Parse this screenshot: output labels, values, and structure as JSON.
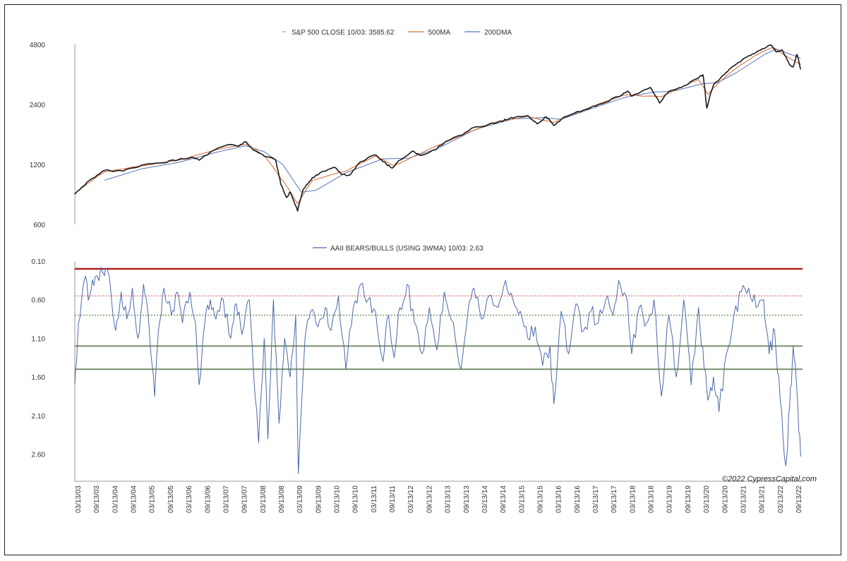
{
  "colors": {
    "price": "#1a1a1a",
    "ma500": "#d8703f",
    "ma200": "#5573b7",
    "ratio": "#4a68a8",
    "red_line": "#b22222",
    "red_dotted": "#d9534f",
    "green_dotted": "#3c6e2a",
    "green_band": "#7a8f6a",
    "axis": "#999999"
  },
  "watermark": "©2022 CypressCapital.com",
  "chart_data": [
    {
      "type": "line",
      "scale": "log",
      "legend": [
        {
          "name": "S&P 500 CLOSE 10/03: 3585.62",
          "color": "#888888"
        },
        {
          "name": "500MA",
          "color": "#d8703f"
        },
        {
          "name": "200DMA",
          "color": "#5573b7"
        }
      ],
      "y_ticks": [
        "4800",
        "2400",
        "1200",
        "600"
      ],
      "ylim": [
        600,
        4800
      ],
      "grid": false,
      "legend_position": "top-center",
      "series": [
        {
          "name": "S&P 500 CLOSE 10/03: 3585.62",
          "role": "price",
          "points": [
            [
              2003.2,
              850
            ],
            [
              2003.6,
              1000
            ],
            [
              2004.0,
              1120
            ],
            [
              2004.5,
              1110
            ],
            [
              2005.0,
              1190
            ],
            [
              2005.5,
              1220
            ],
            [
              2006.0,
              1270
            ],
            [
              2006.4,
              1300
            ],
            [
              2006.55,
              1260
            ],
            [
              2007.0,
              1430
            ],
            [
              2007.4,
              1510
            ],
            [
              2007.6,
              1480
            ],
            [
              2007.8,
              1560
            ],
            [
              2008.0,
              1420
            ],
            [
              2008.3,
              1320
            ],
            [
              2008.6,
              1270
            ],
            [
              2008.75,
              950
            ],
            [
              2008.9,
              820
            ],
            [
              2009.0,
              870
            ],
            [
              2009.2,
              700
            ],
            [
              2009.35,
              900
            ],
            [
              2009.6,
              1030
            ],
            [
              2009.9,
              1110
            ],
            [
              2010.2,
              1160
            ],
            [
              2010.4,
              1070
            ],
            [
              2010.6,
              1060
            ],
            [
              2010.9,
              1240
            ],
            [
              2011.3,
              1340
            ],
            [
              2011.6,
              1200
            ],
            [
              2011.75,
              1150
            ],
            [
              2011.95,
              1260
            ],
            [
              2012.3,
              1400
            ],
            [
              2012.5,
              1330
            ],
            [
              2012.9,
              1420
            ],
            [
              2013.2,
              1570
            ],
            [
              2013.6,
              1680
            ],
            [
              2013.95,
              1840
            ],
            [
              2014.3,
              1890
            ],
            [
              2014.7,
              1980
            ],
            [
              2014.95,
              2060
            ],
            [
              2015.4,
              2110
            ],
            [
              2015.65,
              1920
            ],
            [
              2015.9,
              2080
            ],
            [
              2016.1,
              1880
            ],
            [
              2016.4,
              2080
            ],
            [
              2016.9,
              2250
            ],
            [
              2017.4,
              2420
            ],
            [
              2017.95,
              2690
            ],
            [
              2018.1,
              2800
            ],
            [
              2018.2,
              2640
            ],
            [
              2018.7,
              2920
            ],
            [
              2018.95,
              2440
            ],
            [
              2019.2,
              2790
            ],
            [
              2019.6,
              2970
            ],
            [
              2019.95,
              3230
            ],
            [
              2020.12,
              3380
            ],
            [
              2020.22,
              2300
            ],
            [
              2020.4,
              3000
            ],
            [
              2020.7,
              3400
            ],
            [
              2020.95,
              3750
            ],
            [
              2021.3,
              4150
            ],
            [
              2021.6,
              4450
            ],
            [
              2021.95,
              4770
            ],
            [
              2022.1,
              4400
            ],
            [
              2022.25,
              4500
            ],
            [
              2022.45,
              3800
            ],
            [
              2022.55,
              3700
            ],
            [
              2022.65,
              4280
            ],
            [
              2022.75,
              3600
            ]
          ]
        },
        {
          "name": "500MA",
          "role": "ma500",
          "points": [
            [
              2003.2,
              860
            ],
            [
              2004.0,
              1100
            ],
            [
              2005.0,
              1180
            ],
            [
              2006.0,
              1260
            ],
            [
              2007.0,
              1420
            ],
            [
              2007.8,
              1520
            ],
            [
              2008.3,
              1330
            ],
            [
              2008.7,
              1050
            ],
            [
              2009.2,
              760
            ],
            [
              2009.6,
              1000
            ],
            [
              2010.5,
              1110
            ],
            [
              2011.3,
              1320
            ],
            [
              2011.8,
              1180
            ],
            [
              2012.5,
              1360
            ],
            [
              2013.5,
              1640
            ],
            [
              2014.5,
              1950
            ],
            [
              2015.4,
              2090
            ],
            [
              2016.1,
              1950
            ],
            [
              2017.0,
              2290
            ],
            [
              2018.0,
              2680
            ],
            [
              2019.0,
              2620
            ],
            [
              2020.0,
              3200
            ],
            [
              2020.25,
              2700
            ],
            [
              2020.8,
              3400
            ],
            [
              2021.5,
              4200
            ],
            [
              2022.0,
              4650
            ],
            [
              2022.4,
              4150
            ],
            [
              2022.75,
              3800
            ]
          ]
        },
        {
          "name": "200DMA",
          "role": "ma200",
          "points": [
            [
              2004.0,
              1000
            ],
            [
              2005.0,
              1140
            ],
            [
              2006.0,
              1230
            ],
            [
              2007.0,
              1380
            ],
            [
              2007.8,
              1490
            ],
            [
              2008.3,
              1390
            ],
            [
              2008.8,
              1200
            ],
            [
              2009.3,
              870
            ],
            [
              2009.7,
              890
            ],
            [
              2010.5,
              1090
            ],
            [
              2011.5,
              1280
            ],
            [
              2012.2,
              1290
            ],
            [
              2013.0,
              1450
            ],
            [
              2014.0,
              1800
            ],
            [
              2015.0,
              2030
            ],
            [
              2015.8,
              2060
            ],
            [
              2016.3,
              2020
            ],
            [
              2017.0,
              2250
            ],
            [
              2018.0,
              2600
            ],
            [
              2018.8,
              2770
            ],
            [
              2019.3,
              2790
            ],
            [
              2020.1,
              3050
            ],
            [
              2020.5,
              3080
            ],
            [
              2021.0,
              3450
            ],
            [
              2021.8,
              4300
            ],
            [
              2022.1,
              4550
            ],
            [
              2022.75,
              4100
            ]
          ]
        }
      ]
    },
    {
      "type": "line",
      "y_inverted": true,
      "legend": [
        {
          "name": "AAII BEARS/BULLS (USING 3WMA) 10/03: 2.63",
          "color": "#4a68a8"
        }
      ],
      "y_ticks": [
        "0.10",
        "0.60",
        "1.10",
        "1.60",
        "2.10",
        "2.60"
      ],
      "ylim": [
        0.1,
        2.95
      ],
      "grid": false,
      "legend_position": "top-center",
      "x_labels": [
        "03/13/03",
        "09/13/03",
        "03/13/04",
        "09/13/04",
        "03/13/05",
        "09/13/05",
        "03/13/06",
        "09/13/06",
        "03/13/07",
        "09/13/07",
        "03/13/08",
        "09/13/08",
        "03/13/09",
        "09/13/09",
        "03/13/10",
        "09/13/10",
        "03/13/11",
        "09/13/11",
        "03/13/12",
        "09/13/12",
        "03/13/13",
        "09/13/13",
        "03/13/14",
        "09/13/14",
        "03/13/15",
        "09/13/15",
        "03/13/16",
        "09/13/16",
        "03/13/17",
        "09/13/17",
        "03/13/18",
        "09/13/18",
        "03/13/19",
        "09/13/19",
        "03/13/20",
        "09/13/20",
        "03/13/21",
        "09/13/21",
        "03/13/22",
        "09/13/22"
      ],
      "reference_lines": [
        {
          "value": 0.2,
          "style": "solid-red"
        },
        {
          "value": 0.55,
          "style": "dotted-red"
        },
        {
          "value": 0.8,
          "style": "dotted-green"
        },
        {
          "value": 1.2,
          "style": "solid-green"
        },
        {
          "value": 1.5,
          "style": "solid-green"
        }
      ],
      "series": [
        {
          "name": "AAII BEARS/BULLS (USING 3WMA) 10/03: 2.63",
          "points": [
            [
              2003.2,
              1.7
            ],
            [
              2003.3,
              0.9
            ],
            [
              2003.45,
              0.35
            ],
            [
              2003.6,
              0.55
            ],
            [
              2003.75,
              0.3
            ],
            [
              2003.95,
              0.25
            ],
            [
              2004.05,
              0.2
            ],
            [
              2004.15,
              0.4
            ],
            [
              2004.3,
              1.0
            ],
            [
              2004.45,
              0.5
            ],
            [
              2004.6,
              0.85
            ],
            [
              2004.75,
              0.45
            ],
            [
              2004.9,
              1.1
            ],
            [
              2005.05,
              0.4
            ],
            [
              2005.2,
              0.95
            ],
            [
              2005.35,
              1.85
            ],
            [
              2005.45,
              1.0
            ],
            [
              2005.6,
              0.45
            ],
            [
              2005.8,
              0.8
            ],
            [
              2005.95,
              0.5
            ],
            [
              2006.1,
              0.9
            ],
            [
              2006.3,
              0.5
            ],
            [
              2006.45,
              0.9
            ],
            [
              2006.55,
              1.7
            ],
            [
              2006.7,
              0.9
            ],
            [
              2006.85,
              0.6
            ],
            [
              2007.0,
              0.85
            ],
            [
              2007.2,
              0.6
            ],
            [
              2007.4,
              1.1
            ],
            [
              2007.55,
              0.65
            ],
            [
              2007.7,
              1.05
            ],
            [
              2007.9,
              0.6
            ],
            [
              2008.05,
              1.8
            ],
            [
              2008.15,
              2.45
            ],
            [
              2008.3,
              1.1
            ],
            [
              2008.4,
              2.4
            ],
            [
              2008.55,
              0.6
            ],
            [
              2008.7,
              2.2
            ],
            [
              2008.85,
              1.1
            ],
            [
              2009.0,
              1.6
            ],
            [
              2009.15,
              0.8
            ],
            [
              2009.22,
              2.85
            ],
            [
              2009.4,
              1.1
            ],
            [
              2009.55,
              0.75
            ],
            [
              2009.75,
              0.95
            ],
            [
              2009.95,
              0.7
            ],
            [
              2010.1,
              1.0
            ],
            [
              2010.3,
              0.55
            ],
            [
              2010.5,
              1.5
            ],
            [
              2010.7,
              0.7
            ],
            [
              2010.9,
              0.4
            ],
            [
              2011.1,
              0.6
            ],
            [
              2011.3,
              0.75
            ],
            [
              2011.5,
              1.4
            ],
            [
              2011.65,
              0.8
            ],
            [
              2011.8,
              1.35
            ],
            [
              2011.95,
              0.7
            ],
            [
              2012.15,
              0.4
            ],
            [
              2012.35,
              0.9
            ],
            [
              2012.55,
              1.3
            ],
            [
              2012.75,
              0.7
            ],
            [
              2012.95,
              1.25
            ],
            [
              2013.15,
              0.5
            ],
            [
              2013.4,
              0.9
            ],
            [
              2013.6,
              1.5
            ],
            [
              2013.8,
              0.7
            ],
            [
              2013.95,
              0.45
            ],
            [
              2014.15,
              0.85
            ],
            [
              2014.35,
              0.55
            ],
            [
              2014.6,
              0.7
            ],
            [
              2014.8,
              0.35
            ],
            [
              2015.0,
              0.6
            ],
            [
              2015.2,
              0.75
            ],
            [
              2015.4,
              1.1
            ],
            [
              2015.6,
              0.95
            ],
            [
              2015.8,
              1.45
            ],
            [
              2016.0,
              1.2
            ],
            [
              2016.1,
              1.95
            ],
            [
              2016.3,
              0.75
            ],
            [
              2016.5,
              1.3
            ],
            [
              2016.7,
              0.65
            ],
            [
              2016.9,
              1.0
            ],
            [
              2017.1,
              0.75
            ],
            [
              2017.3,
              0.9
            ],
            [
              2017.5,
              0.6
            ],
            [
              2017.7,
              0.8
            ],
            [
              2017.85,
              0.35
            ],
            [
              2018.05,
              0.55
            ],
            [
              2018.2,
              1.3
            ],
            [
              2018.4,
              0.7
            ],
            [
              2018.6,
              0.9
            ],
            [
              2018.8,
              0.6
            ],
            [
              2019.0,
              1.85
            ],
            [
              2019.2,
              0.8
            ],
            [
              2019.4,
              1.6
            ],
            [
              2019.6,
              0.6
            ],
            [
              2019.8,
              1.7
            ],
            [
              2020.0,
              0.7
            ],
            [
              2020.15,
              1.5
            ],
            [
              2020.25,
              1.9
            ],
            [
              2020.4,
              1.6
            ],
            [
              2020.55,
              2.05
            ],
            [
              2020.75,
              1.3
            ],
            [
              2020.95,
              0.8
            ],
            [
              2021.15,
              0.5
            ],
            [
              2021.35,
              0.45
            ],
            [
              2021.55,
              0.7
            ],
            [
              2021.75,
              0.6
            ],
            [
              2021.9,
              1.3
            ],
            [
              2022.05,
              1.0
            ],
            [
              2022.2,
              1.9
            ],
            [
              2022.35,
              2.75
            ],
            [
              2022.45,
              2.0
            ],
            [
              2022.55,
              1.2
            ],
            [
              2022.65,
              1.8
            ],
            [
              2022.75,
              2.63
            ]
          ]
        }
      ]
    }
  ]
}
